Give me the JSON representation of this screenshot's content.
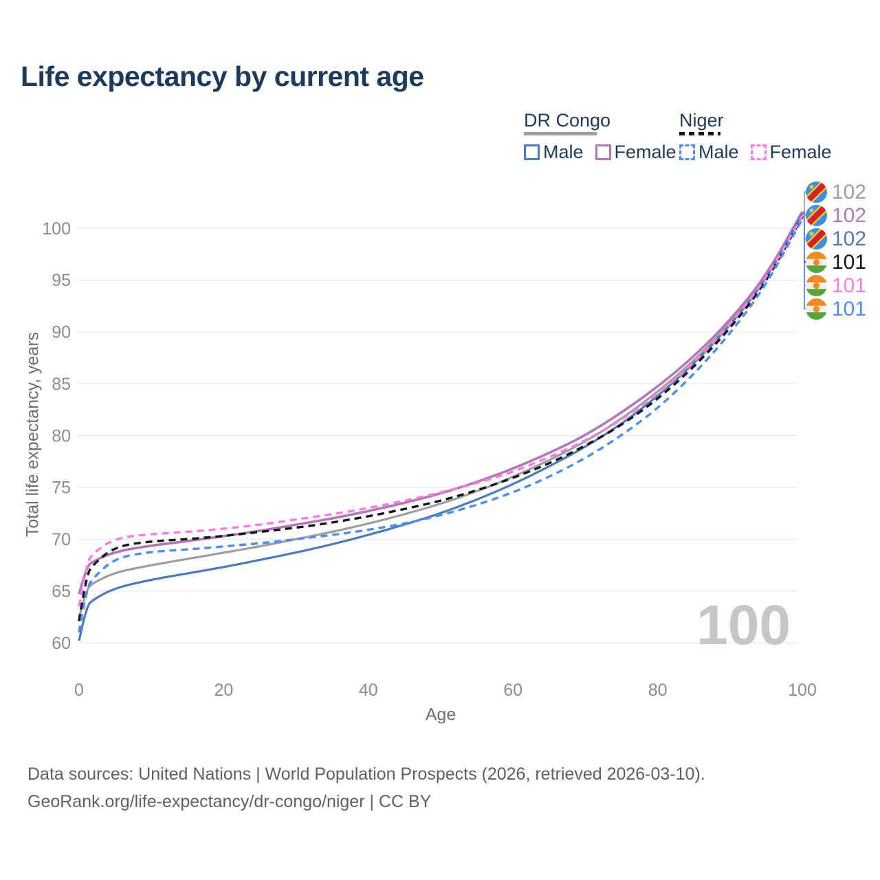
{
  "title": "Life expectancy by current age",
  "age_counter": "100",
  "legend": {
    "groups": [
      {
        "label": "DR Congo",
        "line_style": "solid",
        "underline_color": "#9e9e9e",
        "items": [
          {
            "label": "Male",
            "color": "#4e79bb",
            "dashed": false
          },
          {
            "label": "Female",
            "color": "#b178b8",
            "dashed": false
          }
        ]
      },
      {
        "label": "Niger",
        "line_style": "dashed",
        "underline_color": "#141414",
        "items": [
          {
            "label": "Male",
            "color": "#4d8df6",
            "dashed": true
          },
          {
            "label": "Female",
            "color": "#fb7ce4",
            "dashed": true
          }
        ]
      }
    ]
  },
  "right_labels": [
    {
      "value": "102",
      "color": "#9e9e9e",
      "country": "drc",
      "series": 0
    },
    {
      "value": "102",
      "color": "#b178b8",
      "country": "drc",
      "series": 1
    },
    {
      "value": "102",
      "color": "#4e79bb",
      "country": "drc",
      "series": 2
    },
    {
      "value": "101",
      "color": "#141414",
      "country": "niger",
      "series": 3
    },
    {
      "value": "101",
      "color": "#fb7ce4",
      "country": "niger",
      "series": 4
    },
    {
      "value": "101",
      "color": "#4d8df6",
      "country": "niger",
      "series": 5
    }
  ],
  "footer": {
    "line1": "Data sources: United Nations | World Population Prospects (2026, retrieved 2026-03-10).",
    "line2": "GeoRank.org/life-expectancy/dr-congo/niger | CC BY"
  },
  "chart_data": {
    "type": "line",
    "title": "Life expectancy by current age",
    "xlabel": "Age",
    "ylabel": "Total life expectancy, years",
    "xlim": [
      0,
      100
    ],
    "ylim": [
      60,
      100
    ],
    "x_ticks": [
      0,
      20,
      40,
      60,
      80,
      100
    ],
    "y_ticks": [
      60,
      65,
      70,
      75,
      80,
      85,
      90,
      95,
      100
    ],
    "grid": "horizontal",
    "legend_position": "top-right",
    "x": [
      0,
      1,
      2,
      5,
      10,
      15,
      20,
      25,
      30,
      35,
      40,
      45,
      50,
      55,
      60,
      65,
      70,
      75,
      80,
      85,
      90,
      95,
      100
    ],
    "series": [
      {
        "name": "DR Congo Total",
        "country": "drc",
        "sex": "total",
        "color": "#9e9e9e",
        "dashed": false,
        "width": 3.2,
        "values": [
          62.4,
          65.2,
          65.8,
          66.8,
          67.5,
          68.1,
          68.7,
          69.3,
          70.0,
          70.7,
          71.5,
          72.4,
          73.4,
          74.6,
          76.0,
          77.6,
          79.4,
          81.6,
          84.2,
          87.2,
          90.8,
          95.2,
          101.5
        ]
      },
      {
        "name": "DR Congo Female",
        "country": "drc",
        "sex": "female",
        "color": "#b178b8",
        "dashed": false,
        "width": 3.6,
        "values": [
          64.7,
          67.3,
          67.9,
          68.8,
          69.4,
          69.8,
          70.3,
          70.8,
          71.4,
          72.0,
          72.7,
          73.5,
          74.4,
          75.5,
          76.8,
          78.3,
          80.0,
          82.2,
          84.7,
          87.6,
          91.1,
          95.4,
          101.6
        ]
      },
      {
        "name": "DR Congo Male",
        "country": "drc",
        "sex": "male",
        "color": "#4e79bb",
        "dashed": false,
        "width": 3.2,
        "values": [
          60.2,
          63.5,
          64.2,
          65.3,
          66.1,
          66.7,
          67.3,
          68.0,
          68.7,
          69.5,
          70.4,
          71.4,
          72.5,
          73.8,
          75.3,
          77.0,
          78.9,
          81.1,
          83.8,
          86.9,
          90.6,
          95.0,
          101.4
        ]
      },
      {
        "name": "Niger Total",
        "country": "niger",
        "sex": "total",
        "color": "#141414",
        "dashed": true,
        "width": 3.4,
        "values": [
          62.1,
          66.5,
          67.6,
          69.3,
          69.8,
          70.0,
          70.3,
          70.7,
          71.1,
          71.6,
          72.2,
          72.9,
          73.7,
          74.7,
          75.9,
          77.3,
          79.0,
          81.0,
          83.5,
          86.6,
          90.3,
          94.8,
          101.1
        ]
      },
      {
        "name": "Niger Female",
        "country": "niger",
        "sex": "female",
        "color": "#fb7ce4",
        "dashed": true,
        "width": 3.4,
        "values": [
          63.5,
          67.6,
          68.7,
          70.1,
          70.5,
          70.7,
          71.0,
          71.4,
          71.9,
          72.4,
          73.0,
          73.7,
          74.5,
          75.4,
          76.5,
          77.9,
          79.5,
          81.5,
          84.0,
          87.0,
          90.7,
          95.1,
          101.2
        ]
      },
      {
        "name": "Niger Male",
        "country": "niger",
        "sex": "male",
        "color": "#4d8df6",
        "dashed": true,
        "width": 3.4,
        "values": [
          61.0,
          65.2,
          66.3,
          68.2,
          68.8,
          69.0,
          69.3,
          69.6,
          70.0,
          70.4,
          70.9,
          71.5,
          72.3,
          73.3,
          74.5,
          76.0,
          77.8,
          80.0,
          82.6,
          85.9,
          89.8,
          94.5,
          100.9
        ]
      }
    ]
  }
}
